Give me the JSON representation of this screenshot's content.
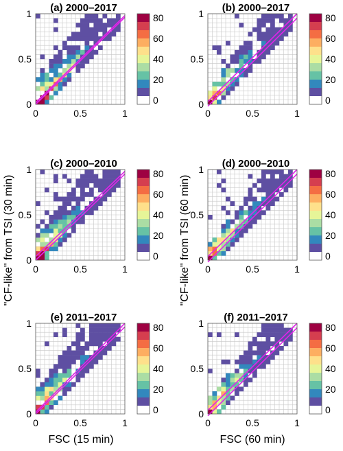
{
  "figure": {
    "ylabel_left": "\"CF-like\" from TSI (30 min)",
    "ylabel_right": "\"CF-like\" from TSI (60 min)",
    "xlabel_left": "FSC (15 min)",
    "xlabel_right": "FSC (60 min)"
  },
  "colormap": {
    "ticks": [
      "80",
      "60",
      "40",
      "20",
      "0"
    ],
    "colors": [
      "#9e0142",
      "#d53e4f",
      "#f46d43",
      "#fdae61",
      "#fee08b",
      "#e6f598",
      "#abdda4",
      "#66c2a5",
      "#3288bd",
      "#5e4fa2",
      "#ffffff"
    ],
    "fit_line_color": "#e024e8"
  },
  "chart_data": [
    {
      "type": "heatmap",
      "title": "(a) 2000–2017",
      "xlabel": "",
      "ylabel": "",
      "xlim": [
        0,
        1
      ],
      "ylim": [
        0,
        1
      ],
      "xticks": [
        "0",
        "0.5",
        "1"
      ],
      "yticks": [
        "0",
        "0.5",
        "1"
      ],
      "colorbar_range": [
        0,
        80
      ],
      "bins": 20,
      "grid": true,
      "fit_lines": [
        {
          "x": [
            0,
            1
          ],
          "y": [
            0.02,
            0.98
          ]
        },
        {
          "x": [
            0,
            1
          ],
          "y": [
            0.0,
            0.96
          ]
        }
      ],
      "peak_cells": [
        [
          0,
          0,
          80
        ],
        [
          1,
          1,
          80
        ],
        [
          1,
          0,
          75
        ],
        [
          2,
          2,
          75
        ],
        [
          3,
          3,
          70
        ],
        [
          2,
          1,
          70
        ],
        [
          4,
          4,
          60
        ],
        [
          5,
          5,
          55
        ],
        [
          6,
          6,
          45
        ],
        [
          7,
          7,
          40
        ],
        [
          8,
          8,
          35
        ]
      ]
    },
    {
      "type": "heatmap",
      "title": "(b) 2000–2017",
      "xlabel": "",
      "ylabel": "",
      "xlim": [
        0,
        1
      ],
      "ylim": [
        0,
        1
      ],
      "xticks": [
        "0",
        "0.5",
        "1"
      ],
      "yticks": [
        "0",
        "0.5",
        "1"
      ],
      "colorbar_range": [
        0,
        80
      ],
      "bins": 20,
      "grid": true,
      "fit_lines": [
        {
          "x": [
            0,
            1
          ],
          "y": [
            0.03,
            1.0
          ]
        },
        {
          "x": [
            0,
            1
          ],
          "y": [
            -0.02,
            0.95
          ]
        }
      ],
      "peak_cells": [
        [
          0,
          0,
          80
        ],
        [
          1,
          1,
          70
        ],
        [
          2,
          2,
          60
        ],
        [
          3,
          3,
          45
        ],
        [
          4,
          4,
          30
        ]
      ]
    },
    {
      "type": "heatmap",
      "title": "(c) 2000–2010",
      "xlabel": "",
      "ylabel": "",
      "xlim": [
        0,
        1
      ],
      "ylim": [
        0,
        1
      ],
      "xticks": [
        "0",
        "0.5",
        "1"
      ],
      "yticks": [
        "0",
        "0.5",
        "1"
      ],
      "colorbar_range": [
        0,
        80
      ],
      "bins": 20,
      "grid": true,
      "fit_lines": [
        {
          "x": [
            0,
            1
          ],
          "y": [
            0.04,
            0.98
          ]
        },
        {
          "x": [
            0,
            1
          ],
          "y": [
            0.0,
            0.95
          ]
        }
      ],
      "peak_cells": [
        [
          0,
          0,
          80
        ],
        [
          1,
          1,
          80
        ],
        [
          1,
          0,
          75
        ],
        [
          2,
          2,
          70
        ],
        [
          3,
          3,
          55
        ],
        [
          4,
          4,
          45
        ],
        [
          5,
          5,
          35
        ]
      ]
    },
    {
      "type": "heatmap",
      "title": "(d) 2000–2010",
      "xlabel": "",
      "ylabel": "",
      "xlim": [
        0,
        1
      ],
      "ylim": [
        0,
        1
      ],
      "xticks": [
        "0",
        "0.5",
        "1"
      ],
      "yticks": [
        "0",
        "0.5",
        "1"
      ],
      "colorbar_range": [
        0,
        80
      ],
      "bins": 20,
      "grid": true,
      "fit_lines": [
        {
          "x": [
            0,
            1
          ],
          "y": [
            0.04,
            1.0
          ]
        },
        {
          "x": [
            0,
            1
          ],
          "y": [
            -0.02,
            0.95
          ]
        }
      ],
      "peak_cells": [
        [
          0,
          0,
          80
        ],
        [
          1,
          1,
          60
        ],
        [
          2,
          2,
          40
        ],
        [
          3,
          3,
          30
        ]
      ]
    },
    {
      "type": "heatmap",
      "title": "(e) 2011–2017",
      "xlabel": "FSC (15 min)",
      "ylabel": "",
      "xlim": [
        0,
        1
      ],
      "ylim": [
        0,
        1
      ],
      "xticks": [
        "0",
        "0.5",
        "1"
      ],
      "yticks": [
        "0",
        "0.5",
        "1"
      ],
      "colorbar_range": [
        0,
        80
      ],
      "bins": 20,
      "grid": true,
      "fit_lines": [
        {
          "x": [
            0,
            1
          ],
          "y": [
            0.02,
            1.0
          ]
        },
        {
          "x": [
            0,
            1
          ],
          "y": [
            0.0,
            0.96
          ]
        }
      ],
      "peak_cells": [
        [
          0,
          0,
          80
        ],
        [
          1,
          1,
          70
        ],
        [
          2,
          2,
          60
        ],
        [
          3,
          3,
          45
        ],
        [
          4,
          4,
          35
        ]
      ]
    },
    {
      "type": "heatmap",
      "title": "(f) 2011–2017",
      "xlabel": "FSC (60 min)",
      "ylabel": "",
      "xlim": [
        0,
        1
      ],
      "ylim": [
        0,
        1
      ],
      "xticks": [
        "0",
        "0.5",
        "1"
      ],
      "yticks": [
        "0",
        "0.5",
        "1"
      ],
      "colorbar_range": [
        0,
        80
      ],
      "bins": 20,
      "grid": true,
      "fit_lines": [
        {
          "x": [
            0,
            1
          ],
          "y": [
            0.04,
            1.0
          ]
        },
        {
          "x": [
            0,
            1
          ],
          "y": [
            -0.02,
            0.95
          ]
        }
      ],
      "peak_cells": [
        [
          0,
          0,
          80
        ],
        [
          1,
          1,
          55
        ],
        [
          2,
          2,
          35
        ],
        [
          3,
          3,
          25
        ]
      ]
    }
  ]
}
